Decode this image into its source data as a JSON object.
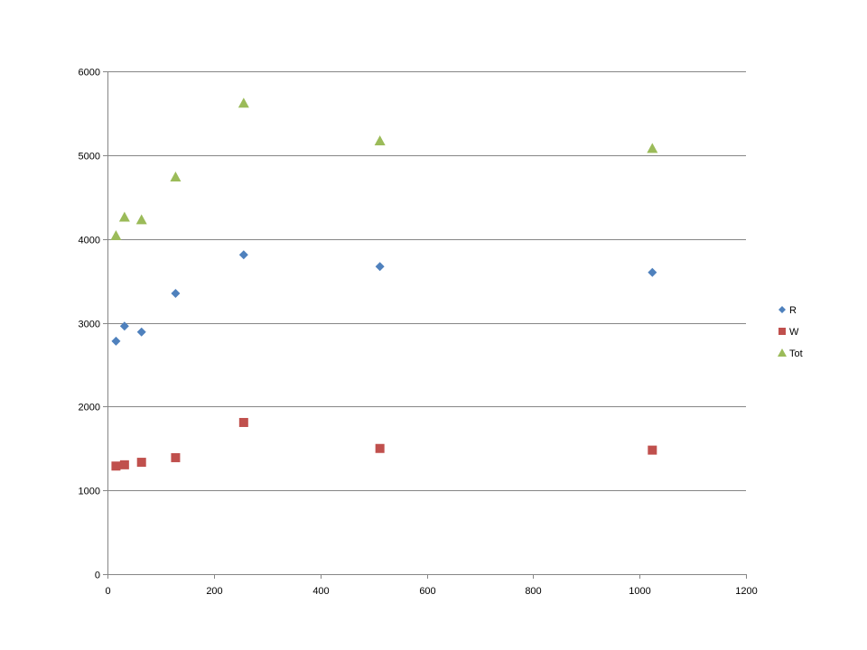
{
  "chart_data": {
    "type": "scatter",
    "title": "",
    "xlabel": "",
    "ylabel": "",
    "xlim": [
      0,
      1200
    ],
    "ylim": [
      0,
      6000
    ],
    "x_ticks": [
      0,
      200,
      400,
      600,
      800,
      1000,
      1200
    ],
    "y_ticks": [
      0,
      1000,
      2000,
      3000,
      4000,
      5000,
      6000
    ],
    "grid": {
      "horizontal": true,
      "vertical": false
    },
    "legend_position": "right",
    "x": [
      16,
      32,
      64,
      128,
      256,
      512,
      1024
    ],
    "series": [
      {
        "name": "R",
        "marker": "diamond",
        "color": "#4F81BD",
        "values": [
          2780,
          2960,
          2890,
          3350,
          3810,
          3670,
          3600
        ]
      },
      {
        "name": "W",
        "marker": "square",
        "color": "#C0504D",
        "values": [
          1290,
          1305,
          1335,
          1390,
          1810,
          1500,
          1480
        ]
      },
      {
        "name": "Tot",
        "marker": "triangle",
        "color": "#9BBB59",
        "values": [
          4040,
          4260,
          4230,
          4740,
          5620,
          5170,
          5080
        ]
      }
    ]
  }
}
